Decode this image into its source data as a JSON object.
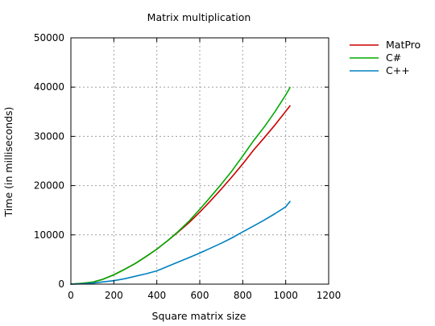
{
  "chart_data": {
    "type": "line",
    "title": "Matrix multiplication",
    "xlabel": "Square matrix size",
    "ylabel": "Time (in milliseconds)",
    "xlim": [
      0,
      1200
    ],
    "ylim": [
      0,
      50000
    ],
    "xticks": [
      0,
      200,
      400,
      600,
      800,
      1000,
      1200
    ],
    "yticks": [
      0,
      10000,
      20000,
      30000,
      40000,
      50000
    ],
    "grid": true,
    "legend_position": "outside-top-right",
    "x": [
      0,
      50,
      100,
      150,
      200,
      250,
      300,
      350,
      400,
      450,
      500,
      550,
      600,
      650,
      700,
      750,
      800,
      850,
      900,
      950,
      1000,
      1020
    ],
    "series": [
      {
        "name": "MatPro",
        "color": "#cc0000",
        "values": [
          0,
          150,
          400,
          1000,
          1900,
          3000,
          4200,
          5600,
          7100,
          8800,
          10600,
          12500,
          14600,
          16900,
          19300,
          21800,
          24400,
          27200,
          29700,
          32300,
          35100,
          36200
        ]
      },
      {
        "name": "C#",
        "color": "#00aa00",
        "values": [
          0,
          150,
          400,
          1000,
          1900,
          3000,
          4200,
          5600,
          7100,
          8800,
          10700,
          12800,
          15200,
          17700,
          20300,
          23000,
          26000,
          29100,
          31900,
          35000,
          38400,
          39900
        ]
      },
      {
        "name": "C++",
        "color": "#0080c0",
        "values": [
          0,
          50,
          200,
          450,
          700,
          1100,
          1600,
          2100,
          2700,
          3600,
          4500,
          5400,
          6300,
          7300,
          8300,
          9400,
          10600,
          11800,
          13000,
          14300,
          15700,
          16800
        ]
      }
    ]
  }
}
